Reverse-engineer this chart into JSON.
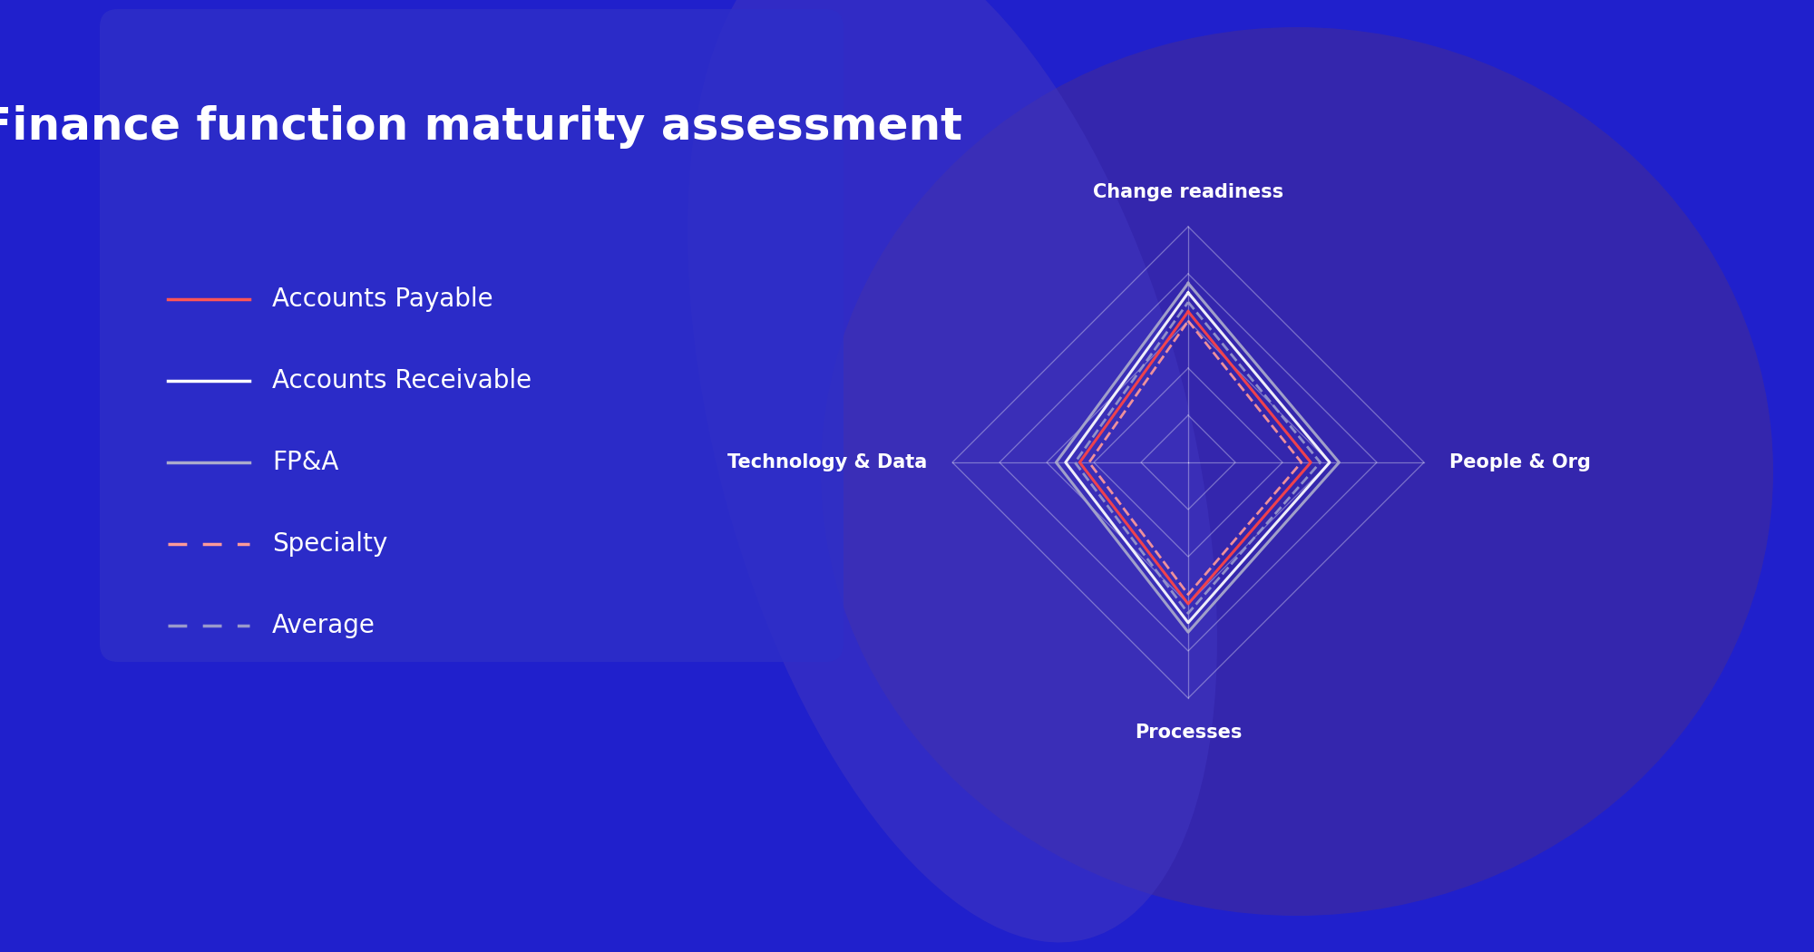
{
  "title": "Finance function maturity assessment",
  "background_color": "#2020CC",
  "axes_labels": [
    "Change readiness",
    "People & Org",
    "Processes",
    "Technology & Data"
  ],
  "grid_levels": [
    1,
    2,
    3,
    4,
    5
  ],
  "series": [
    {
      "name": "Accounts Payable",
      "color": "#FF4444",
      "linestyle": "solid",
      "linewidth": 2.2,
      "values": [
        3.2,
        2.6,
        3.0,
        2.3
      ]
    },
    {
      "name": "Accounts Receivable",
      "color": "#FFFFFF",
      "linestyle": "solid",
      "linewidth": 2.2,
      "values": [
        3.6,
        3.0,
        3.4,
        2.6
      ]
    },
    {
      "name": "FP&A",
      "color": "#AAAACC",
      "linestyle": "solid",
      "linewidth": 2.2,
      "values": [
        3.8,
        3.2,
        3.6,
        2.8
      ]
    },
    {
      "name": "Specialty",
      "color": "#FF9999",
      "linestyle": "dashed",
      "linewidth": 2.0,
      "values": [
        3.0,
        2.4,
        2.8,
        2.1
      ]
    },
    {
      "name": "Average",
      "color": "#9999CC",
      "linestyle": "dashed",
      "linewidth": 2.0,
      "values": [
        3.4,
        2.8,
        3.2,
        2.4
      ]
    }
  ],
  "grid_color": "#FFFFFF",
  "grid_alpha": 0.35,
  "label_fontsize": 15,
  "title_fontsize": 36,
  "legend_fontsize": 20,
  "card_color": "#3030CC",
  "blob1_color": "#3828a8",
  "blob2_color": "#4035c0",
  "legend_items": [
    {
      "label": "Accounts Payable",
      "color": "#FF5555",
      "ls": "solid"
    },
    {
      "label": "Accounts Receivable",
      "color": "#FFFFFF",
      "ls": "solid"
    },
    {
      "label": "FP&A",
      "color": "#AAAACC",
      "ls": "solid"
    },
    {
      "label": "Specialty",
      "color": "#FF9999",
      "ls": "dashed"
    },
    {
      "label": "Average",
      "color": "#9999CC",
      "ls": "dashed"
    }
  ]
}
